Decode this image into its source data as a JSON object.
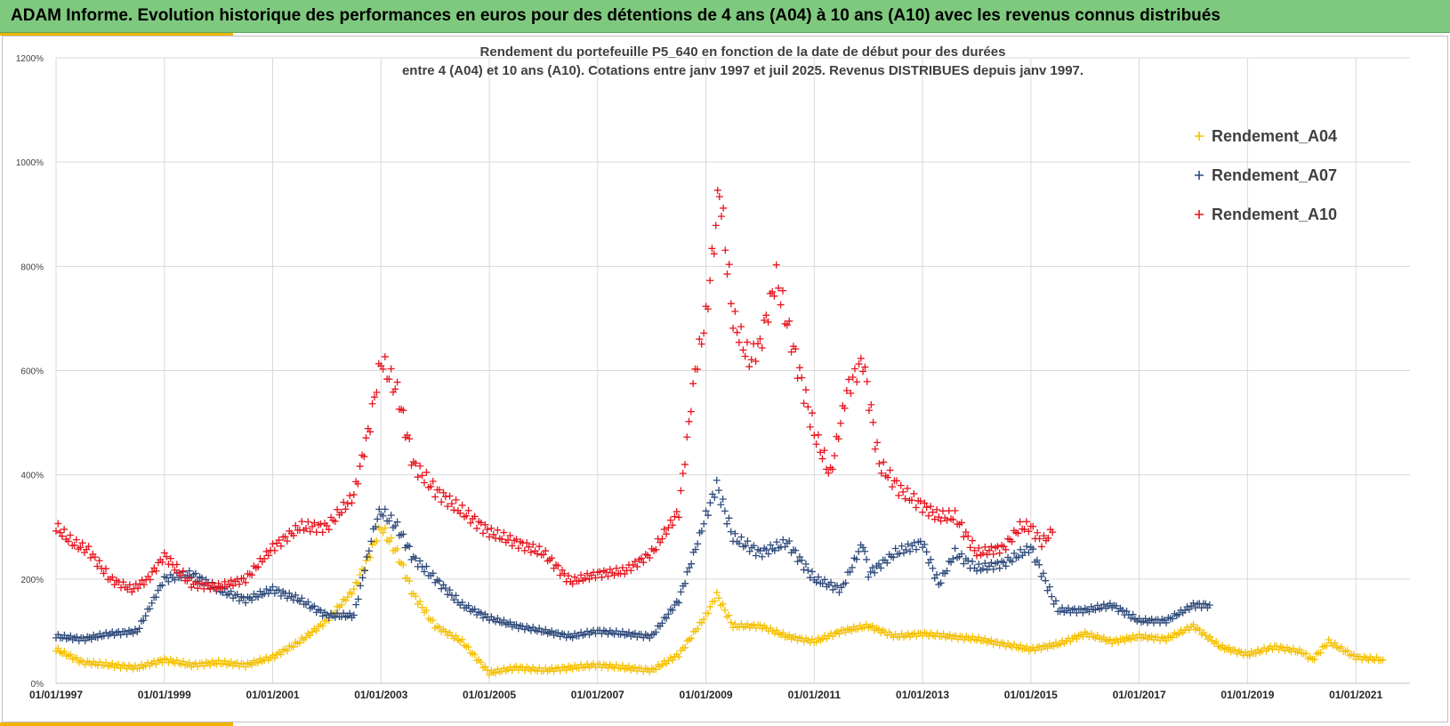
{
  "banner": {
    "title": "ADAM Informe. Evolution historique des performances en euros pour des détentions de 4 ans (A04) à 10 ans (A10) avec les revenus connus distribués"
  },
  "colors": {
    "banner_bg": "#7fc97f",
    "accent": "#f0b400",
    "A04": "#f5c000",
    "A07": "#2f4b7c",
    "A10": "#e8141e"
  },
  "chart_data": {
    "type": "scatter",
    "title_lines": [
      "Rendement du portefeuille P5_640 en fonction de la date de début pour des durées",
      "entre 4 (A04) et 10 ans (A10). Cotations entre janv 1997 et juil 2025. Revenus DISTRIBUES depuis janv 1997."
    ],
    "marker": "+",
    "x_axis": {
      "type": "date",
      "range": [
        "1997-01-01",
        "2022-01-01"
      ],
      "tick_labels": [
        "01/01/1997",
        "01/01/1999",
        "01/01/2001",
        "01/01/2003",
        "01/01/2005",
        "01/01/2007",
        "01/01/2009",
        "01/01/2011",
        "01/01/2013",
        "01/01/2015",
        "01/01/2017",
        "01/01/2019",
        "01/01/2021"
      ],
      "tick_values": [
        1997,
        1999,
        2001,
        2003,
        2005,
        2007,
        2009,
        2011,
        2013,
        2015,
        2017,
        2019,
        2021
      ]
    },
    "y_axis": {
      "range": [
        0,
        1200
      ],
      "unit": "%",
      "tick_labels": [
        "0%",
        "200%",
        "400%",
        "600%",
        "800%",
        "1000%",
        "1200%"
      ],
      "tick_values": [
        0,
        200,
        400,
        600,
        800,
        1000,
        1200
      ]
    },
    "grid": true,
    "legend_position": "top-right",
    "series": [
      {
        "name": "Rendement_A04",
        "color": "#f5c000",
        "x": [
          1997.0,
          1997.5,
          1998.0,
          1998.5,
          1999.0,
          1999.5,
          2000.0,
          2000.5,
          2001.0,
          2001.5,
          2002.0,
          2002.5,
          2002.8,
          2003.0,
          2003.3,
          2003.6,
          2004.0,
          2004.5,
          2005.0,
          2005.5,
          2006.0,
          2006.5,
          2007.0,
          2007.5,
          2008.0,
          2008.5,
          2009.0,
          2009.2,
          2009.5,
          2010.0,
          2010.5,
          2011.0,
          2011.5,
          2012.0,
          2012.5,
          2013.0,
          2013.5,
          2014.0,
          2014.5,
          2015.0,
          2015.5,
          2016.0,
          2016.5,
          2017.0,
          2017.5,
          2018.0,
          2018.5,
          2019.0,
          2019.5,
          2020.0,
          2020.2,
          2020.5,
          2021.0,
          2021.5
        ],
        "y": [
          65,
          40,
          35,
          30,
          45,
          35,
          40,
          35,
          50,
          80,
          120,
          180,
          250,
          300,
          250,
          170,
          110,
          80,
          20,
          30,
          25,
          30,
          35,
          30,
          25,
          55,
          130,
          170,
          110,
          110,
          90,
          80,
          100,
          110,
          90,
          95,
          90,
          85,
          75,
          65,
          75,
          95,
          80,
          90,
          85,
          110,
          70,
          55,
          70,
          60,
          45,
          80,
          50,
          45
        ]
      },
      {
        "name": "Rendement_A07",
        "color": "#2f4b7c",
        "x": [
          1997.0,
          1997.5,
          1998.0,
          1998.5,
          1999.0,
          1999.5,
          2000.0,
          2000.5,
          2001.0,
          2001.5,
          2002.0,
          2002.5,
          2002.9,
          2003.0,
          2003.3,
          2003.6,
          2004.0,
          2004.5,
          2005.0,
          2005.5,
          2006.0,
          2006.5,
          2007.0,
          2007.5,
          2008.0,
          2008.5,
          2009.0,
          2009.2,
          2009.5,
          2010.0,
          2010.5,
          2011.0,
          2011.5,
          2011.9,
          2012.0,
          2012.5,
          2013.0,
          2013.3,
          2013.6,
          2014.0,
          2014.5,
          2015.0,
          2015.5,
          2016.0,
          2016.5,
          2017.0,
          2017.5,
          2018.0,
          2018.3
        ],
        "y": [
          90,
          85,
          95,
          100,
          200,
          210,
          180,
          160,
          180,
          160,
          130,
          130,
          310,
          330,
          300,
          240,
          200,
          150,
          125,
          110,
          100,
          90,
          100,
          95,
          90,
          160,
          320,
          380,
          280,
          250,
          270,
          200,
          180,
          270,
          210,
          250,
          270,
          190,
          250,
          220,
          230,
          260,
          140,
          140,
          150,
          120,
          120,
          150,
          150
        ]
      },
      {
        "name": "Rendement_A10",
        "color": "#e8141e",
        "x": [
          1997.0,
          1997.3,
          1997.6,
          1998.0,
          1998.4,
          1998.7,
          1999.0,
          1999.5,
          2000.0,
          2000.5,
          2001.0,
          2001.5,
          2002.0,
          2002.5,
          2002.8,
          2003.0,
          2003.3,
          2003.6,
          2004.0,
          2004.5,
          2005.0,
          2005.5,
          2006.0,
          2006.5,
          2007.0,
          2007.5,
          2008.0,
          2008.5,
          2008.8,
          2009.0,
          2009.15,
          2009.25,
          2009.5,
          2009.8,
          2010.0,
          2010.3,
          2010.5,
          2011.0,
          2011.3,
          2011.6,
          2011.9,
          2012.2,
          2012.6,
          2013.0,
          2013.3,
          2013.6,
          2014.0,
          2014.5,
          2014.8,
          2015.0,
          2015.2,
          2015.4
        ],
        "y": [
          300,
          270,
          255,
          200,
          180,
          200,
          245,
          190,
          185,
          200,
          260,
          300,
          300,
          360,
          500,
          620,
          560,
          420,
          370,
          330,
          290,
          270,
          250,
          195,
          210,
          215,
          250,
          330,
          600,
          700,
          850,
          950,
          700,
          620,
          650,
          780,
          690,
          480,
          400,
          560,
          620,
          420,
          370,
          340,
          320,
          320,
          250,
          260,
          300,
          300,
          270,
          290
        ]
      }
    ]
  }
}
